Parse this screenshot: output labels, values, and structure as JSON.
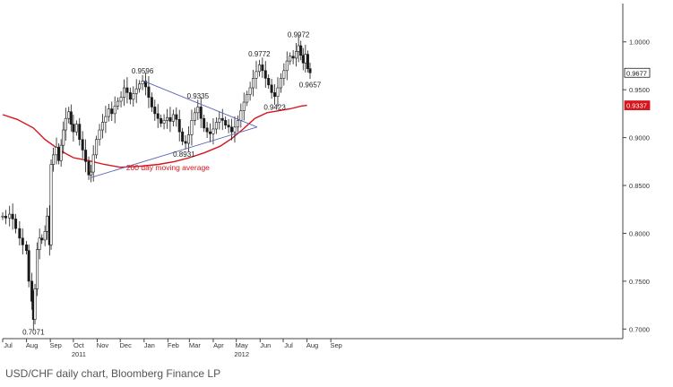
{
  "caption": "USD/CHF daily chart, Bloomberg Finance LP",
  "chart_data": {
    "type": "candlestick",
    "title": "",
    "xlabel": "",
    "ylabel": "",
    "x_range": [
      "2010-07-01",
      "2012-09-15"
    ],
    "ylim": [
      0.69,
      1.04
    ],
    "grid": false,
    "colors": {
      "price": "#1a1a1a",
      "moving_average": "#d8141c",
      "trendline": "#5b63b5",
      "current_box": "#1a1a1a",
      "ma_box": "#d8141c"
    },
    "yticks": [
      {
        "value": 0.7,
        "label": "0.7000"
      },
      {
        "value": 0.75,
        "label": "0.7500"
      },
      {
        "value": 0.8,
        "label": "0.8000"
      },
      {
        "value": 0.85,
        "label": "0.8500"
      },
      {
        "value": 0.9,
        "label": "0.9000"
      },
      {
        "value": 0.95,
        "label": "0.9500"
      },
      {
        "value": 1.0,
        "label": "1.0000"
      }
    ],
    "xticks": [
      {
        "date": "2010-07-01",
        "label": "Jul"
      },
      {
        "date": "2010-08-01",
        "label": "Aug"
      },
      {
        "date": "2010-09-01",
        "label": "Sep"
      },
      {
        "date": "2010-10-01",
        "label": "Oct"
      },
      {
        "date": "2010-11-01",
        "label": "Nov"
      },
      {
        "date": "2010-12-01",
        "label": "Dec"
      },
      {
        "date": "2011-01-01",
        "label": "Jan"
      },
      {
        "date": "2011-02-01",
        "label": "Feb"
      },
      {
        "date": "2011-03-01",
        "label": "Mar"
      },
      {
        "date": "2011-04-01",
        "label": "Apr"
      },
      {
        "date": "2011-05-01",
        "label": "May"
      },
      {
        "date": "2011-06-01",
        "label": "Jun"
      },
      {
        "date": "2011-07-01",
        "label": "Jul"
      },
      {
        "date": "2011-08-01",
        "label": "Aug"
      },
      {
        "date": "2011-09-01",
        "label": "Sep"
      }
    ],
    "year_labels": [
      {
        "date": "2010-10-01",
        "label": "2011"
      },
      {
        "date": "2011-05-01",
        "label": "2012"
      }
    ],
    "series": [
      {
        "name": "200 day moving average",
        "type": "line",
        "points": [
          [
            "2010-07-01",
            0.924
          ],
          [
            "2010-07-20",
            0.919
          ],
          [
            "2010-08-10",
            0.91
          ],
          [
            "2010-08-25",
            0.898
          ],
          [
            "2010-09-15",
            0.886
          ],
          [
            "2010-10-01",
            0.879
          ],
          [
            "2010-10-20",
            0.876
          ],
          [
            "2010-11-10",
            0.872
          ],
          [
            "2010-12-01",
            0.869
          ],
          [
            "2010-12-25",
            0.87
          ],
          [
            "2011-01-20",
            0.872
          ],
          [
            "2011-02-10",
            0.875
          ],
          [
            "2011-03-01",
            0.879
          ],
          [
            "2011-03-20",
            0.884
          ],
          [
            "2011-04-10",
            0.891
          ],
          [
            "2011-04-25",
            0.899
          ],
          [
            "2011-05-10",
            0.909
          ],
          [
            "2011-05-25",
            0.92
          ],
          [
            "2011-06-10",
            0.926
          ],
          [
            "2011-06-25",
            0.928
          ],
          [
            "2011-07-10",
            0.93
          ],
          [
            "2011-07-25",
            0.933
          ],
          [
            "2011-08-01",
            0.9337
          ]
        ]
      },
      {
        "name": "",
        "type": "candlestick",
        "points": [
          [
            "2010-07-01",
            0.818
          ],
          [
            "2010-07-05",
            0.816
          ],
          [
            "2010-07-10",
            0.82
          ],
          [
            "2010-07-14",
            0.815
          ],
          [
            "2010-07-18",
            0.805
          ],
          [
            "2010-07-23",
            0.795
          ],
          [
            "2010-07-27",
            0.788
          ],
          [
            "2010-08-01",
            0.782
          ],
          [
            "2010-08-04",
            0.75
          ],
          [
            "2010-08-08",
            0.729
          ],
          [
            "2010-08-10",
            0.71
          ],
          [
            "2010-08-12",
            0.742
          ],
          [
            "2010-08-15",
            0.783
          ],
          [
            "2010-08-18",
            0.795
          ],
          [
            "2010-08-21",
            0.793
          ],
          [
            "2010-08-25",
            0.802
          ],
          [
            "2010-08-28",
            0.818
          ],
          [
            "2010-08-31",
            0.788
          ],
          [
            "2010-09-02",
            0.872
          ],
          [
            "2010-09-05",
            0.882
          ],
          [
            "2010-09-09",
            0.89
          ],
          [
            "2010-09-12",
            0.876
          ],
          [
            "2010-09-15",
            0.892
          ],
          [
            "2010-09-18",
            0.908
          ],
          [
            "2010-09-21",
            0.92
          ],
          [
            "2010-09-25",
            0.927
          ],
          [
            "2010-09-28",
            0.914
          ],
          [
            "2010-10-01",
            0.906
          ],
          [
            "2010-10-05",
            0.914
          ],
          [
            "2010-10-09",
            0.898
          ],
          [
            "2010-10-13",
            0.887
          ],
          [
            "2010-10-17",
            0.875
          ],
          [
            "2010-10-21",
            0.861
          ],
          [
            "2010-10-24",
            0.864
          ],
          [
            "2010-10-27",
            0.882
          ],
          [
            "2010-10-31",
            0.898
          ],
          [
            "2010-11-04",
            0.908
          ],
          [
            "2010-11-08",
            0.916
          ],
          [
            "2010-11-12",
            0.922
          ],
          [
            "2010-11-16",
            0.93
          ],
          [
            "2010-11-20",
            0.925
          ],
          [
            "2010-11-24",
            0.933
          ],
          [
            "2010-11-28",
            0.938
          ],
          [
            "2010-12-02",
            0.942
          ],
          [
            "2010-12-06",
            0.952
          ],
          [
            "2010-12-10",
            0.947
          ],
          [
            "2010-12-14",
            0.94
          ],
          [
            "2010-12-18",
            0.946
          ],
          [
            "2010-12-22",
            0.951
          ],
          [
            "2010-12-26",
            0.956
          ],
          [
            "2010-12-30",
            0.959
          ],
          [
            "2011-01-03",
            0.953
          ],
          [
            "2011-01-07",
            0.942
          ],
          [
            "2011-01-11",
            0.932
          ],
          [
            "2011-01-15",
            0.925
          ],
          [
            "2011-01-19",
            0.92
          ],
          [
            "2011-01-23",
            0.915
          ],
          [
            "2011-01-27",
            0.918
          ],
          [
            "2011-01-31",
            0.921
          ],
          [
            "2011-02-04",
            0.917
          ],
          [
            "2011-02-08",
            0.924
          ],
          [
            "2011-02-12",
            0.919
          ],
          [
            "2011-02-16",
            0.906
          ],
          [
            "2011-02-20",
            0.896
          ],
          [
            "2011-02-24",
            0.894
          ],
          [
            "2011-02-28",
            0.903
          ],
          [
            "2011-03-04",
            0.918
          ],
          [
            "2011-03-08",
            0.926
          ],
          [
            "2011-03-12",
            0.932
          ],
          [
            "2011-03-16",
            0.92
          ],
          [
            "2011-03-20",
            0.91
          ],
          [
            "2011-03-24",
            0.906
          ],
          [
            "2011-03-28",
            0.904
          ],
          [
            "2011-04-01",
            0.909
          ],
          [
            "2011-04-05",
            0.916
          ],
          [
            "2011-04-09",
            0.92
          ],
          [
            "2011-04-13",
            0.918
          ],
          [
            "2011-04-17",
            0.913
          ],
          [
            "2011-04-21",
            0.911
          ],
          [
            "2011-04-25",
            0.906
          ],
          [
            "2011-04-29",
            0.911
          ],
          [
            "2011-05-03",
            0.918
          ],
          [
            "2011-05-07",
            0.928
          ],
          [
            "2011-05-11",
            0.937
          ],
          [
            "2011-05-15",
            0.945
          ],
          [
            "2011-05-19",
            0.952
          ],
          [
            "2011-05-23",
            0.962
          ],
          [
            "2011-05-27",
            0.969
          ],
          [
            "2011-05-31",
            0.976
          ],
          [
            "2011-06-04",
            0.97
          ],
          [
            "2011-06-08",
            0.962
          ],
          [
            "2011-06-12",
            0.955
          ],
          [
            "2011-06-16",
            0.947
          ],
          [
            "2011-06-20",
            0.943
          ],
          [
            "2011-06-24",
            0.952
          ],
          [
            "2011-06-28",
            0.962
          ],
          [
            "2011-07-02",
            0.97
          ],
          [
            "2011-07-06",
            0.98
          ],
          [
            "2011-07-10",
            0.985
          ],
          [
            "2011-07-14",
            0.983
          ],
          [
            "2011-07-18",
            0.99
          ],
          [
            "2011-07-21",
            0.996
          ],
          [
            "2011-07-24",
            0.986
          ],
          [
            "2011-07-27",
            0.978
          ],
          [
            "2011-07-30",
            0.987
          ],
          [
            "2011-08-02",
            0.972
          ],
          [
            "2011-08-05",
            0.9677
          ]
        ]
      },
      {
        "name": "",
        "type": "trendline",
        "points": [
          [
            "2010-10-23",
            0.858
          ],
          [
            "2011-05-28",
            0.911
          ]
        ]
      },
      {
        "name": "",
        "type": "trendline",
        "points": [
          [
            "2010-12-30",
            0.9596
          ],
          [
            "2011-05-28",
            0.911
          ]
        ]
      }
    ],
    "annotations": [
      {
        "label": "0.7071",
        "date": "2010-08-10",
        "value": 0.7071,
        "position": "below"
      },
      {
        "label": "0.9596",
        "date": "2010-12-30",
        "value": 0.9596,
        "position": "above"
      },
      {
        "label": "0.8931",
        "date": "2011-02-22",
        "value": 0.8931,
        "position": "below"
      },
      {
        "label": "0.9335",
        "date": "2011-03-12",
        "value": 0.9335,
        "position": "above"
      },
      {
        "label": "0.9772",
        "date": "2011-05-31",
        "value": 0.9772,
        "position": "above"
      },
      {
        "label": "0.9423",
        "date": "2011-06-20",
        "value": 0.9423,
        "position": "below"
      },
      {
        "label": "0.9972",
        "date": "2011-07-21",
        "value": 0.9972,
        "position": "above"
      },
      {
        "label": "0.9657",
        "date": "2011-08-05",
        "value": 0.9657,
        "position": "below"
      }
    ],
    "moving_average_label": {
      "text": "200 day moving average",
      "date": "2011-02-01",
      "value": 0.866
    },
    "current_price": {
      "value": 0.9677,
      "label": "0.9677"
    },
    "moving_average_last": {
      "value": 0.9337,
      "label": "0.9337"
    }
  }
}
